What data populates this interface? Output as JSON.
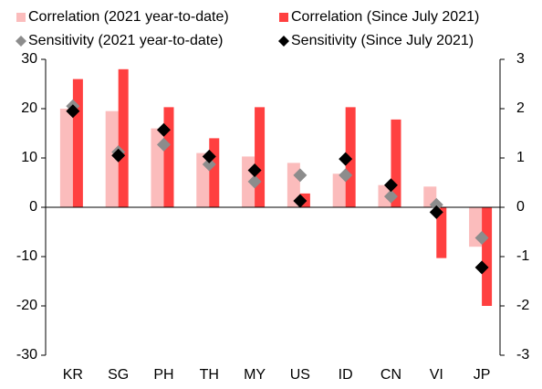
{
  "chart_data": {
    "type": "bar",
    "categories": [
      "KR",
      "SG",
      "PH",
      "TH",
      "MY",
      "US",
      "ID",
      "CN",
      "VI",
      "JP"
    ],
    "series": [
      {
        "name": "Correlation (2021 year-to-date)",
        "type": "bar",
        "color": "#fbbcbc",
        "values": [
          20,
          19.5,
          16,
          11,
          10.3,
          9,
          6.8,
          4.5,
          4.2,
          -8
        ]
      },
      {
        "name": "Correlation (Since July 2021)",
        "type": "bar",
        "color": "#ff4040",
        "values": [
          26,
          28,
          20.3,
          14,
          20.3,
          2.8,
          20.3,
          17.8,
          -10.3,
          -20
        ]
      },
      {
        "name": "Sensitivity (2021 year-to-date)",
        "type": "scatter",
        "axis": "y2",
        "color": "#8c8c8c",
        "values": [
          2.05,
          1.12,
          1.27,
          0.87,
          0.52,
          0.65,
          0.65,
          0.22,
          0.05,
          -0.62
        ]
      },
      {
        "name": "Sensitivity (Since July 2021)",
        "type": "scatter",
        "axis": "y2",
        "color": "#000000",
        "values": [
          1.95,
          1.05,
          1.57,
          1.03,
          0.75,
          0.13,
          0.98,
          0.45,
          -0.1,
          -1.22
        ]
      }
    ],
    "ylim": [
      -30,
      30
    ],
    "yticks": [
      -30,
      -20,
      -10,
      0,
      10,
      20,
      30
    ],
    "y2lim": [
      -3,
      3
    ],
    "y2ticks": [
      -3,
      -2,
      -1,
      0,
      1,
      2,
      3
    ],
    "grid": false,
    "legend": "top"
  }
}
